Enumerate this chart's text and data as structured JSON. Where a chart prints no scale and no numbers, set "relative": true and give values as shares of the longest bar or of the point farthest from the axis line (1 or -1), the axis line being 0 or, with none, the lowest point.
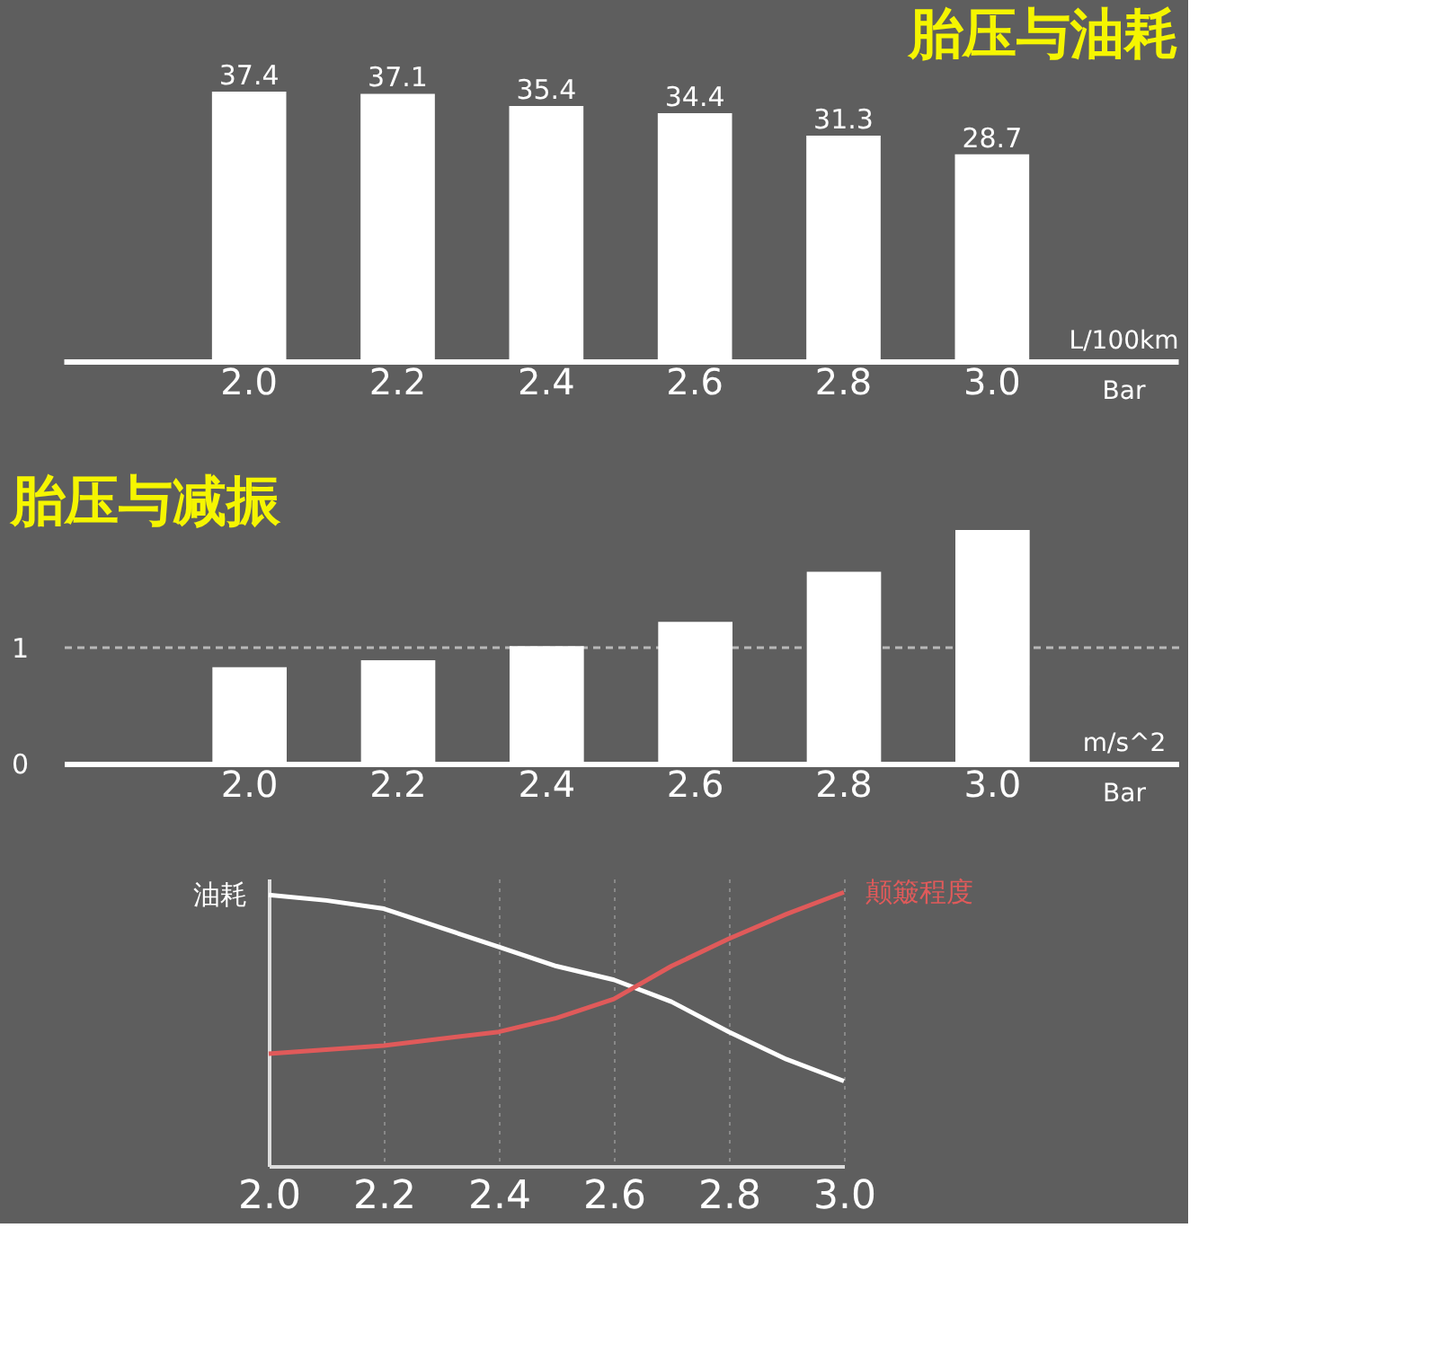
{
  "chart_data": [
    {
      "type": "bar",
      "title": "胎压与油耗",
      "categories": [
        "2.0",
        "2.2",
        "2.4",
        "2.6",
        "2.8",
        "3.0"
      ],
      "values": [
        37.4,
        37.1,
        35.4,
        34.4,
        31.3,
        28.7
      ],
      "data_labels": true,
      "color": "#ffffff",
      "xlabel": "Bar",
      "ylabel": "L/100km",
      "tick_labels": "x"
    },
    {
      "type": "bar",
      "title": "胎压与减振",
      "categories": [
        "2.0",
        "2.2",
        "2.4",
        "2.6",
        "2.8",
        "3.0"
      ],
      "values": [
        0.83,
        0.89,
        1.01,
        1.22,
        1.65,
        2.01
      ],
      "color": "#ffffff",
      "ylim": [
        0,
        2.01
      ],
      "yticks": [
        0,
        1
      ],
      "grid": "y",
      "xlabel": "Bar",
      "ylabel": "m/s^2"
    },
    {
      "type": "line",
      "relative": true,
      "xlim": [
        2,
        3
      ],
      "xticks": [
        {
          "value": 2,
          "label": "2.0"
        },
        {
          "value": 2.2,
          "label": "2.2"
        },
        {
          "value": 2.4,
          "label": "2.4"
        },
        {
          "value": 2.6,
          "label": "2.6"
        },
        {
          "value": 2.8,
          "label": "2.8"
        },
        {
          "value": 3,
          "label": "3.0"
        }
      ],
      "grid": "x",
      "legend": false,
      "series": [
        {
          "name": "油耗",
          "color": "#ffffff",
          "x": [
            2.0,
            2.1,
            2.2,
            2.3,
            2.4,
            2.5,
            2.6,
            2.7,
            2.8,
            2.9,
            3.0
          ],
          "values": [
            0.99,
            0.97,
            0.94,
            0.87,
            0.8,
            0.73,
            0.68,
            0.6,
            0.49,
            0.39,
            0.31
          ]
        },
        {
          "name": "颠簸程度",
          "color": "#e05a5a",
          "x": [
            2.0,
            2.2,
            2.4,
            2.5,
            2.6,
            2.7,
            2.8,
            2.9,
            3.0
          ],
          "values": [
            0.41,
            0.44,
            0.49,
            0.54,
            0.61,
            0.73,
            0.83,
            0.92,
            1.0
          ]
        }
      ]
    }
  ]
}
